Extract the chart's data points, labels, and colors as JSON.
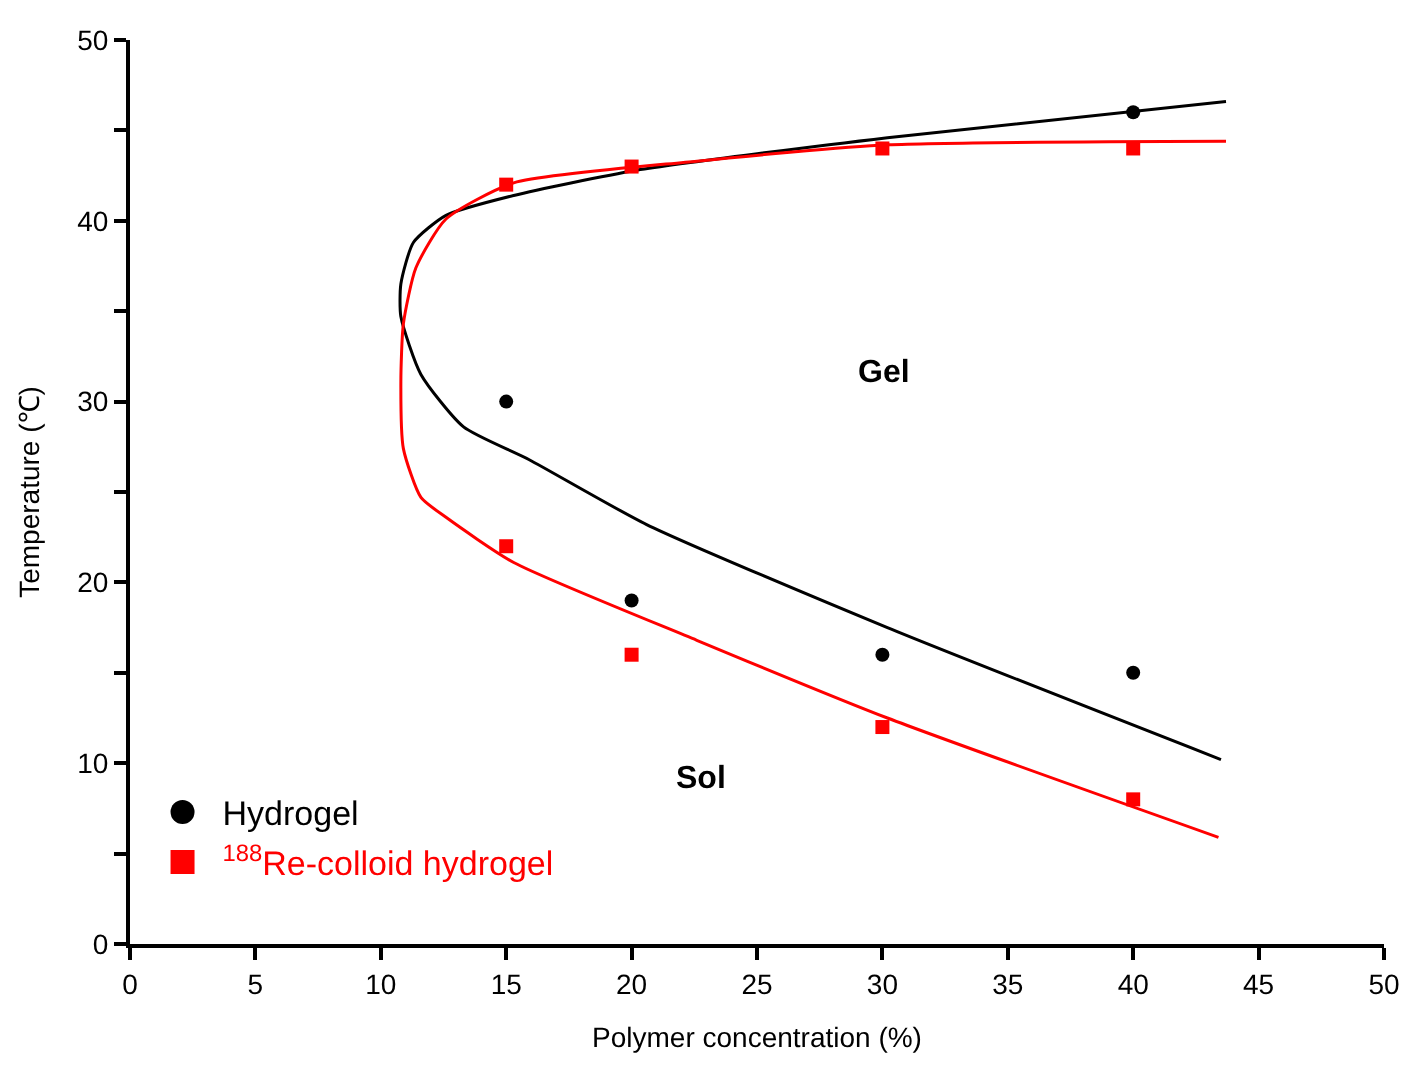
{
  "chart_data": {
    "type": "scatter",
    "xlabel": "Polymer concentration (%)",
    "ylabel": "Temperature (℃)",
    "xlim": [
      0,
      50
    ],
    "xticks": [
      0,
      5,
      10,
      15,
      20,
      25,
      30,
      35,
      40,
      45,
      50
    ],
    "ylim": [
      0,
      50
    ],
    "yticks": [
      0,
      {
        "value": 5,
        "label": null
      },
      10,
      {
        "value": 15,
        "label": null
      },
      20,
      {
        "value": 25,
        "label": null
      },
      30,
      {
        "value": 35,
        "label": null
      },
      40,
      {
        "value": 45,
        "label": null
      },
      50
    ],
    "grid": false,
    "legend": "bottom left",
    "series": [
      {
        "type": "line",
        "color": "#000000",
        "marker": "none",
        "x": [
          43.7,
          30.2,
          20.2,
          15.3,
          12.6,
          11.3,
          10.8,
          10.8,
          11.6,
          13.3,
          15.9,
          20.6,
          30.2,
          43.5
        ],
        "values": [
          46.6,
          44.6,
          42.8,
          41.4,
          40.3,
          38.8,
          36.5,
          34.7,
          31.5,
          28.6,
          26.8,
          23.2,
          17.5,
          10.2
        ]
      },
      {
        "type": "line",
        "color": "#ff0000",
        "marker": "none",
        "x": [
          43.7,
          30.2,
          22.6,
          15.3,
          12.6,
          11.4,
          10.9,
          10.8,
          10.9,
          11.6,
          12.6,
          15.3,
          22.6,
          30.2,
          43.4
        ],
        "values": [
          44.4,
          44.2,
          43.3,
          42.1,
          40.1,
          37.4,
          34.3,
          31.1,
          27.4,
          24.7,
          23.6,
          21.1,
          16.8,
          12.5,
          5.9
        ]
      },
      {
        "name": "Hydrogel",
        "color": "#000000",
        "marker": "circle",
        "x": [
          15,
          20,
          30,
          40,
          40
        ],
        "values": [
          30,
          19,
          16,
          15,
          46
        ]
      },
      {
        "name": "$^{188}$Re-colloid hydrogel",
        "color": "#ff0000",
        "marker": "square",
        "x": [
          15,
          20,
          30,
          40,
          15,
          20,
          30,
          40
        ],
        "values": [
          22,
          16,
          12,
          8,
          42,
          43,
          44,
          44
        ]
      }
    ],
    "annotations": [
      "Gel",
      "Sol"
    ]
  }
}
